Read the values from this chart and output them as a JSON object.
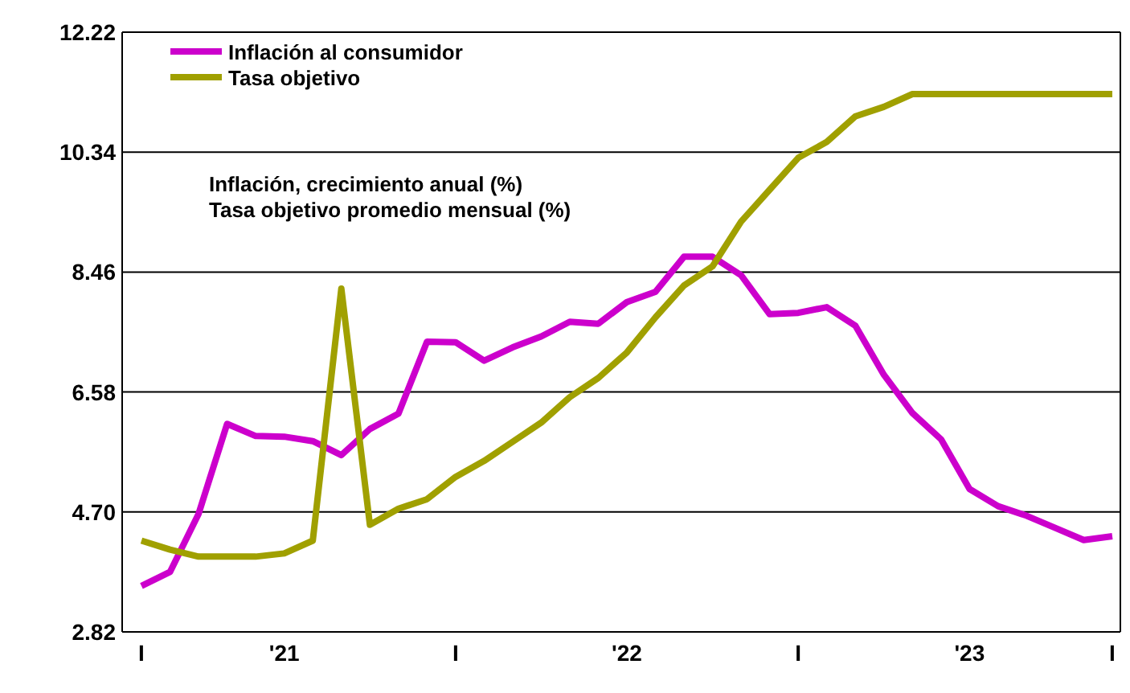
{
  "chart_data": {
    "type": "line",
    "categories": [
      "I",
      null,
      null,
      null,
      null,
      "'21",
      null,
      null,
      null,
      null,
      null,
      "I",
      null,
      null,
      null,
      null,
      null,
      "'22",
      null,
      null,
      null,
      null,
      null,
      "I",
      null,
      null,
      null,
      null,
      null,
      "'23",
      null,
      null,
      null,
      null,
      "I"
    ],
    "series": [
      {
        "name": "Inflación al consumidor",
        "color": "#cc00cc",
        "values": [
          3.54,
          3.76,
          4.67,
          6.08,
          5.89,
          5.88,
          5.81,
          5.59,
          6.0,
          6.24,
          7.37,
          7.36,
          7.07,
          7.28,
          7.45,
          7.68,
          7.65,
          7.99,
          8.15,
          8.7,
          8.7,
          8.41,
          7.8,
          7.82,
          7.91,
          7.62,
          6.85,
          6.25,
          5.84,
          5.06,
          4.79,
          4.64,
          4.45,
          4.26,
          4.32
        ]
      },
      {
        "name": "Tasa objetivo",
        "color": "#a0a000",
        "values": [
          4.25,
          4.11,
          4.0,
          4.0,
          4.0,
          4.05,
          4.25,
          8.2,
          4.5,
          4.75,
          4.9,
          5.25,
          5.5,
          5.8,
          6.1,
          6.5,
          6.8,
          7.2,
          7.75,
          8.25,
          8.55,
          9.25,
          9.75,
          10.25,
          10.5,
          10.9,
          11.05,
          11.25,
          11.25,
          11.25,
          11.25,
          11.25,
          11.25,
          11.25,
          11.25
        ]
      }
    ],
    "ylim": [
      2.82,
      12.22
    ],
    "yticks": [
      2.82,
      {
        "value": 4.7,
        "label": "4.70"
      },
      6.58,
      8.46,
      10.34,
      12.22
    ],
    "grid": "y",
    "legend": "top left",
    "line_style": "solid",
    "marker": "none",
    "annotations": [
      "Inflación, crecimiento anual (%)",
      "Tasa objetivo promedio mensual (%)"
    ]
  }
}
